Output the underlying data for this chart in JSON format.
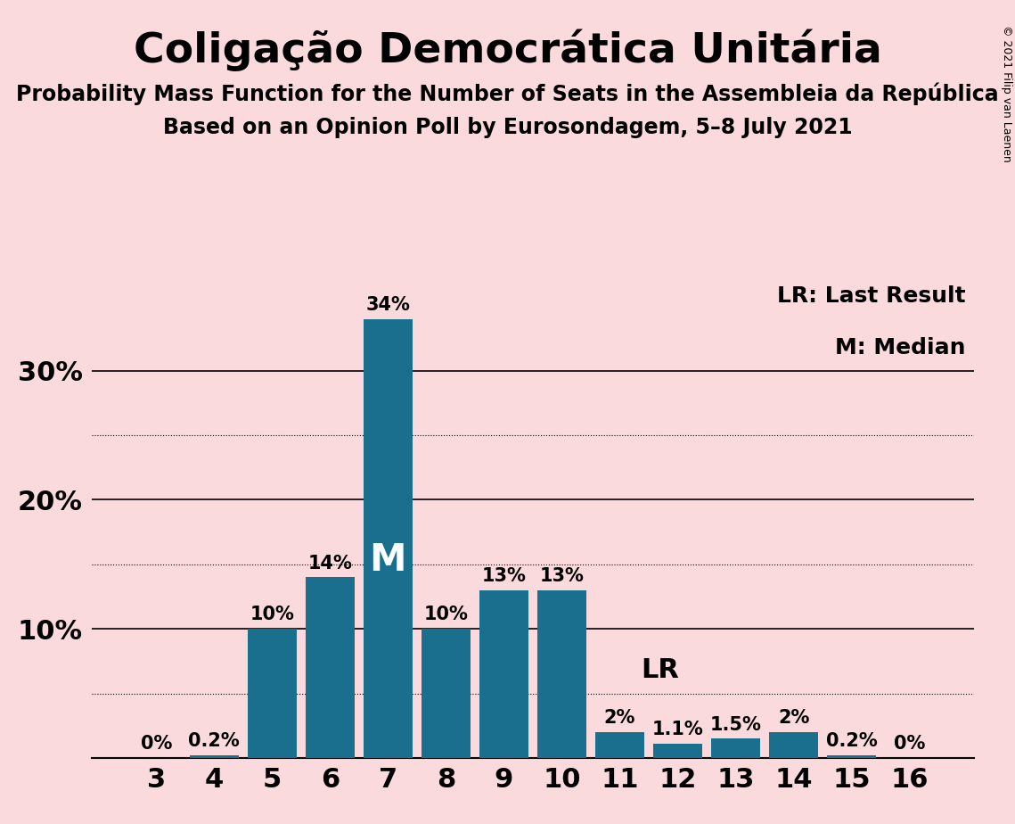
{
  "title": "Coligação Democrática Unitária",
  "subtitle1": "Probability Mass Function for the Number of Seats in the Assembleia da República",
  "subtitle2": "Based on an Opinion Poll by Eurosondagem, 5–8 July 2021",
  "copyright": "© 2021 Filip van Laenen",
  "categories": [
    3,
    4,
    5,
    6,
    7,
    8,
    9,
    10,
    11,
    12,
    13,
    14,
    15,
    16
  ],
  "values": [
    0.0,
    0.2,
    10.0,
    14.0,
    34.0,
    10.0,
    13.0,
    13.0,
    2.0,
    1.1,
    1.5,
    2.0,
    0.2,
    0.0
  ],
  "bar_labels": [
    "0%",
    "0.2%",
    "10%",
    "14%",
    "34%",
    "10%",
    "13%",
    "13%",
    "2%",
    "1.1%",
    "1.5%",
    "2%",
    "0.2%",
    "0%"
  ],
  "bar_color": "#1a6e8e",
  "background_color": "#fadadd",
  "median_seat": 7,
  "median_label": "M",
  "lr_seat": 12,
  "lr_label": "LR",
  "yticks_solid": [
    10,
    20,
    30
  ],
  "yticks_dotted": [
    5,
    15,
    25
  ],
  "ylim": [
    0,
    37
  ],
  "title_fontsize": 34,
  "subtitle_fontsize": 17,
  "label_fontsize": 15,
  "axis_fontsize": 22,
  "annotation_fontsize": 22,
  "legend_fontsize": 18,
  "copyright_fontsize": 9
}
